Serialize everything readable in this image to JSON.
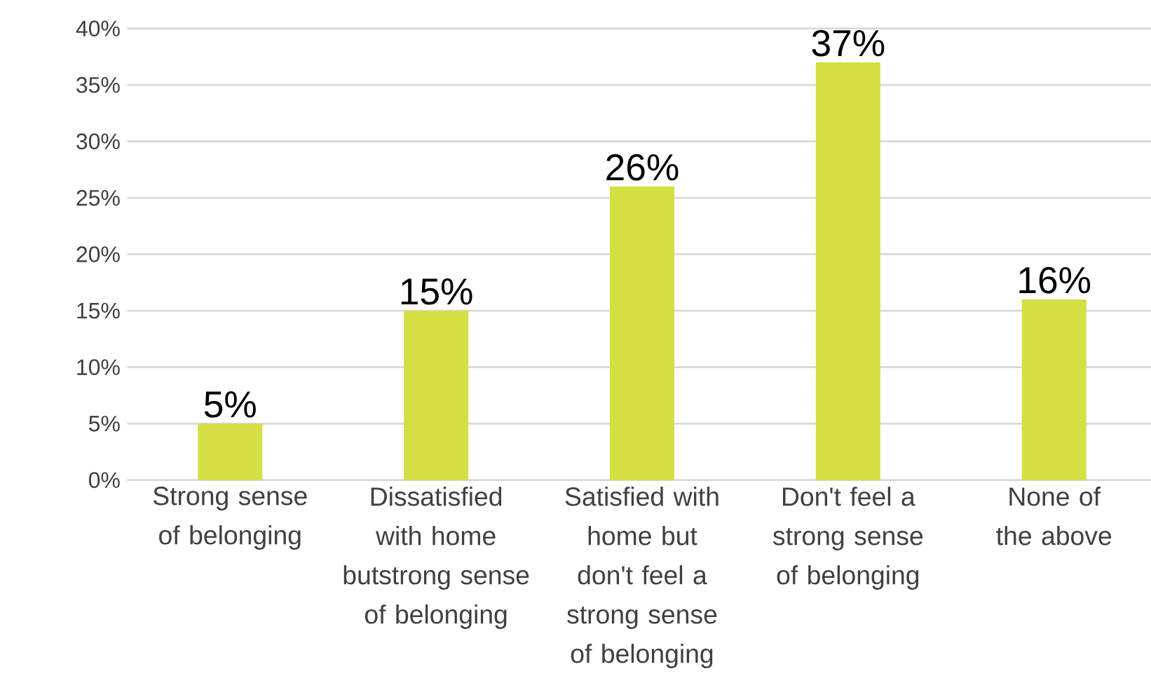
{
  "chart_data": {
    "type": "bar",
    "categories": [
      "Strong sense of belonging",
      "Dissatisfied with home butstrong sense of belonging",
      "Satisfied with home but don't feel a strong sense of belonging",
      "Don't feel a strong sense of belonging",
      "None of the above"
    ],
    "values": [
      5,
      15,
      26,
      37,
      16
    ],
    "value_labels": [
      "5%",
      "15%",
      "26%",
      "37%",
      "16%"
    ],
    "color": "#d4df44",
    "ylim": [
      0,
      40
    ],
    "yticks": [
      {
        "value": 0,
        "label": "0%"
      },
      {
        "value": 5,
        "label": "5%"
      },
      {
        "value": 10,
        "label": "10%"
      },
      {
        "value": 15,
        "label": "15%"
      },
      {
        "value": 20,
        "label": "20%"
      },
      {
        "value": 25,
        "label": "25%"
      },
      {
        "value": 30,
        "label": "30%"
      },
      {
        "value": 35,
        "label": "35%"
      },
      {
        "value": 40,
        "label": "40%"
      }
    ],
    "grid": "y"
  }
}
